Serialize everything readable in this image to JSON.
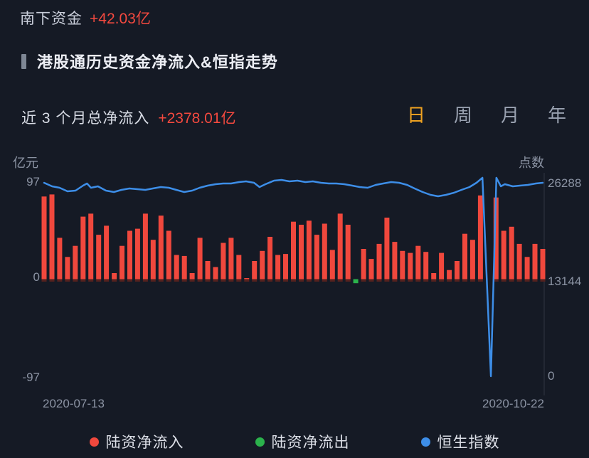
{
  "header": {
    "label": "南下资金",
    "value": "+42.03亿"
  },
  "section": {
    "title": "港股通历史资金净流入&恒指走势"
  },
  "summary": {
    "label": "近 3 个月总净流入",
    "value": "+2378.01亿"
  },
  "tabs": [
    {
      "label": "日",
      "active": true
    },
    {
      "label": "周",
      "active": false
    },
    {
      "label": "月",
      "active": false
    },
    {
      "label": "年",
      "active": false
    }
  ],
  "colors": {
    "background": "#151a25",
    "accent_red": "#f4493f",
    "tab_active": "#f0a321",
    "text_dim": "#8b93a3",
    "inflow_bar": "#f0483d",
    "outflow_bar": "#2bb24c",
    "index_line": "#3d8ee8"
  },
  "chart_data": {
    "type": "bar",
    "title": "港股通历史资金净流入&恒指走势",
    "left_axis": {
      "unit": "亿元",
      "ticks": [
        "97",
        "0",
        "-97"
      ],
      "range": [
        -97,
        97
      ]
    },
    "right_axis": {
      "unit": "点数",
      "ticks": [
        "26288",
        "13144",
        "0"
      ],
      "range": [
        0,
        26288
      ]
    },
    "x_axis": {
      "start_label": "2020-07-13",
      "end_label": "2020-10-22"
    },
    "grid": false,
    "legend_position": "bottom",
    "legend": [
      {
        "label": "陆资净流入",
        "color": "#f0483d"
      },
      {
        "label": "陆资净流出",
        "color": "#2bb24c"
      },
      {
        "label": "恒生指数",
        "color": "#3d8ee8"
      }
    ],
    "series": [
      {
        "name": "陆资净流入/净流出(亿元)",
        "type": "bar",
        "values": [
          82,
          84,
          41,
          22,
          33,
          62,
          65,
          44,
          53,
          6,
          33,
          48,
          50,
          65,
          39,
          63,
          48,
          24,
          23,
          6,
          41,
          18,
          12,
          36,
          41,
          24,
          1,
          18,
          28,
          42,
          24,
          25,
          57,
          54,
          58,
          44,
          55,
          29,
          65,
          54,
          -4,
          30,
          20,
          35,
          61,
          37,
          28,
          26,
          33,
          27,
          6,
          26,
          9,
          18,
          45,
          39,
          83,
          null,
          81,
          48,
          52,
          35,
          22,
          35,
          30
        ]
      },
      {
        "name": "恒生指数(点)",
        "type": "line",
        "points": [
          [
            0.0,
            26097
          ],
          [
            0.016,
            25619
          ],
          [
            0.031,
            25428
          ],
          [
            0.047,
            24950
          ],
          [
            0.063,
            25046
          ],
          [
            0.078,
            25715
          ],
          [
            0.086,
            26001
          ],
          [
            0.094,
            25428
          ],
          [
            0.108,
            25619
          ],
          [
            0.124,
            25046
          ],
          [
            0.14,
            24854
          ],
          [
            0.155,
            25141
          ],
          [
            0.171,
            25332
          ],
          [
            0.187,
            25237
          ],
          [
            0.203,
            25141
          ],
          [
            0.218,
            25332
          ],
          [
            0.234,
            25524
          ],
          [
            0.25,
            25428
          ],
          [
            0.265,
            25141
          ],
          [
            0.281,
            24854
          ],
          [
            0.297,
            25046
          ],
          [
            0.312,
            25428
          ],
          [
            0.328,
            25715
          ],
          [
            0.344,
            25906
          ],
          [
            0.359,
            26002
          ],
          [
            0.375,
            26002
          ],
          [
            0.391,
            26193
          ],
          [
            0.405,
            26289
          ],
          [
            0.421,
            26097
          ],
          [
            0.432,
            25524
          ],
          [
            0.444,
            25906
          ],
          [
            0.461,
            26384
          ],
          [
            0.476,
            26480
          ],
          [
            0.492,
            26289
          ],
          [
            0.508,
            26384
          ],
          [
            0.524,
            26193
          ],
          [
            0.539,
            26289
          ],
          [
            0.555,
            26097
          ],
          [
            0.571,
            26002
          ],
          [
            0.586,
            26002
          ],
          [
            0.602,
            25906
          ],
          [
            0.618,
            25715
          ],
          [
            0.633,
            25524
          ],
          [
            0.649,
            25428
          ],
          [
            0.665,
            25810
          ],
          [
            0.68,
            26002
          ],
          [
            0.696,
            26193
          ],
          [
            0.712,
            26097
          ],
          [
            0.728,
            25810
          ],
          [
            0.743,
            25332
          ],
          [
            0.759,
            24854
          ],
          [
            0.775,
            24472
          ],
          [
            0.79,
            24280
          ],
          [
            0.806,
            24472
          ],
          [
            0.822,
            24759
          ],
          [
            0.837,
            25141
          ],
          [
            0.853,
            25524
          ],
          [
            0.867,
            26097
          ],
          [
            0.879,
            26766
          ],
          [
            0.896,
            100
          ],
          [
            0.907,
            26766
          ],
          [
            0.916,
            25619
          ],
          [
            0.924,
            25906
          ],
          [
            0.94,
            25619
          ],
          [
            0.954,
            25715
          ],
          [
            0.97,
            25810
          ],
          [
            0.986,
            26002
          ],
          [
            1.0,
            26097
          ]
        ]
      }
    ]
  }
}
